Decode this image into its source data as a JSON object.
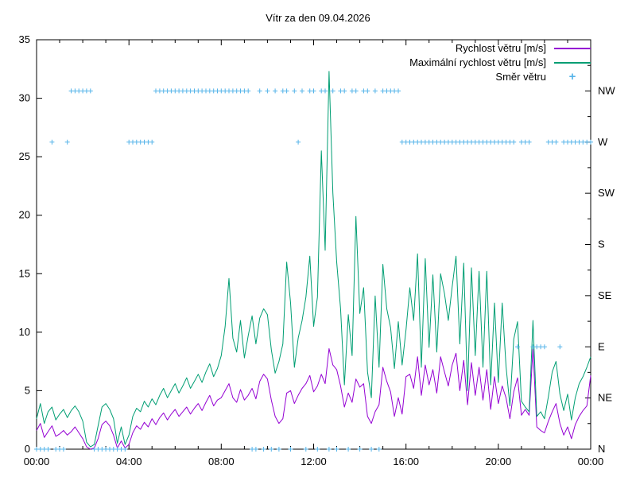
{
  "title": "Vítr za den 09.04.2026",
  "colors": {
    "avg": "#9400d3",
    "max": "#009e73",
    "dir": "#56b4e9",
    "axis": "#000000"
  },
  "legend": [
    {
      "label": "Rychlost větru [m/s]",
      "color": "#9400d3",
      "sample": "line"
    },
    {
      "label": "Maximální rychlost větru [m/s]",
      "color": "#009e73",
      "sample": "line"
    },
    {
      "label": "Směr větru",
      "color": "#56b4e9",
      "sample": "plus"
    }
  ],
  "chart_data": {
    "type": "line",
    "title": "Vítr za den 09.04.2026",
    "xlabel": "",
    "ylabel": "",
    "ylim": [
      0,
      35
    ],
    "y_ticks_left": [
      0,
      5,
      10,
      15,
      20,
      25,
      30,
      35
    ],
    "right_axis_labels": [
      "N",
      "NE",
      "E",
      "SE",
      "S",
      "SW",
      "W",
      "NW"
    ],
    "right_axis_unit_per_label": 4.375,
    "x_range_minutes": [
      0,
      1440
    ],
    "x_major_tick_hours": [
      0,
      4,
      8,
      12,
      16,
      20,
      24
    ],
    "x_major_tick_labels": [
      "00:00",
      "04:00",
      "08:00",
      "12:00",
      "16:00",
      "20:00",
      "00:00"
    ],
    "x_minor_tick_every_hours": 1,
    "grid": false,
    "legend_position": "top-right-inside",
    "time_step_minutes": 10,
    "series": [
      {
        "name": "Rychlost větru [m/s]",
        "color": "#9400d3",
        "values": [
          1.6,
          2.2,
          1.0,
          1.5,
          2.0,
          1.1,
          1.3,
          1.6,
          1.2,
          1.5,
          1.9,
          1.4,
          0.9,
          0.2,
          0.0,
          0.1,
          0.9,
          2.1,
          2.4,
          2.0,
          1.2,
          0.1,
          0.7,
          0.1,
          0.4,
          1.4,
          2.0,
          1.7,
          2.3,
          1.9,
          2.6,
          2.1,
          2.7,
          3.1,
          2.5,
          3.0,
          3.4,
          2.8,
          3.2,
          3.6,
          3.0,
          3.5,
          3.9,
          3.3,
          4.0,
          4.6,
          3.7,
          4.2,
          4.4,
          5.0,
          5.6,
          4.4,
          4.0,
          5.1,
          4.2,
          4.6,
          5.2,
          4.3,
          5.8,
          6.4,
          6.0,
          4.2,
          2.8,
          2.2,
          2.6,
          4.8,
          5.0,
          3.9,
          4.6,
          5.2,
          5.6,
          6.3,
          4.9,
          5.4,
          6.4,
          5.6,
          8.6,
          7.2,
          6.8,
          5.4,
          3.6,
          4.8,
          4.0,
          6.0,
          5.3,
          5.6,
          2.8,
          2.2,
          3.2,
          3.8,
          7.0,
          5.8,
          4.9,
          2.8,
          4.4,
          3.0,
          6.2,
          6.4,
          5.2,
          7.9,
          4.6,
          7.2,
          5.5,
          6.8,
          4.8,
          7.9,
          6.6,
          5.4,
          7.2,
          8.2,
          5.0,
          7.6,
          3.8,
          7.4,
          4.6,
          7.0,
          4.2,
          6.8,
          3.4,
          6.2,
          3.9,
          5.4,
          4.4,
          2.6,
          4.9,
          6.1,
          2.9,
          3.4,
          2.9,
          8.6,
          1.9,
          1.6,
          1.4,
          2.4,
          3.2,
          3.9,
          2.2,
          1.2,
          1.9,
          0.9,
          2.1,
          2.8,
          3.3,
          3.7,
          6.3
        ]
      },
      {
        "name": "Maximální rychlost větru [m/s]",
        "color": "#009e73",
        "values": [
          2.6,
          3.9,
          2.2,
          3.2,
          3.6,
          2.5,
          3.0,
          3.4,
          2.7,
          3.3,
          3.7,
          3.2,
          2.4,
          0.6,
          0.2,
          0.4,
          2.0,
          3.6,
          3.9,
          3.4,
          2.6,
          0.5,
          1.9,
          0.4,
          1.2,
          2.8,
          3.5,
          3.2,
          4.1,
          3.6,
          4.3,
          3.8,
          4.6,
          5.2,
          4.4,
          5.0,
          5.6,
          4.8,
          5.4,
          6.1,
          5.2,
          5.8,
          6.4,
          5.7,
          6.6,
          7.3,
          6.2,
          6.9,
          8.0,
          10.5,
          14.6,
          9.5,
          8.3,
          11.0,
          7.8,
          9.7,
          11.4,
          9.0,
          11.2,
          12.0,
          11.5,
          8.5,
          6.5,
          7.5,
          9.0,
          16.0,
          12.5,
          7.0,
          9.5,
          11.0,
          13.0,
          16.5,
          10.5,
          13.0,
          25.5,
          17.0,
          32.3,
          21.9,
          16.0,
          12.0,
          5.5,
          11.5,
          8.0,
          19.9,
          11.6,
          13.8,
          6.6,
          4.4,
          13.1,
          7.0,
          15.8,
          12.0,
          10.4,
          6.9,
          10.9,
          7.2,
          10.2,
          13.8,
          11.0,
          16.7,
          7.0,
          16.3,
          8.7,
          14.9,
          8.3,
          15.0,
          13.3,
          11.0,
          13.9,
          16.5,
          9.0,
          15.9,
          5.0,
          15.5,
          8.0,
          15.2,
          7.0,
          15.2,
          5.5,
          12.5,
          5.7,
          12.5,
          7.1,
          3.7,
          9.4,
          10.9,
          4.1,
          3.6,
          3.2,
          11.0,
          2.8,
          3.2,
          2.6,
          4.5,
          6.6,
          7.5,
          4.7,
          3.3,
          4.7,
          2.5,
          4.4,
          5.6,
          6.2,
          7.0,
          7.9
        ]
      }
    ],
    "direction_series": {
      "name": "Směr větru",
      "color": "#56b4e9",
      "marker": "plus",
      "values": [
        "N",
        "N",
        "N",
        "N",
        "W",
        "N",
        "N",
        "N",
        "W",
        "NW",
        "NW",
        "NW",
        "NW",
        "NW",
        "NW",
        "N",
        "N",
        "N",
        "N",
        "N",
        "N",
        "N",
        "N",
        "N",
        "W",
        "W",
        "W",
        "W",
        "W",
        "W",
        "W",
        "NW",
        "NW",
        "NW",
        "NW",
        "NW",
        "NW",
        "NW",
        "NW",
        "NW",
        "NW",
        "NW",
        "NW",
        "NW",
        "NW",
        "NW",
        "NW",
        "NW",
        "NW",
        "NW",
        "NW",
        "NW",
        "NW",
        "NW",
        "NW",
        "NW",
        "N",
        "N",
        "NW",
        "N",
        "NW",
        "N",
        "NW",
        "N",
        "NW",
        "NW",
        "N",
        "NW",
        "W",
        "NW",
        "N",
        "NW",
        "NW",
        "N",
        "NW",
        "NW",
        "N",
        "NW",
        "N",
        "NW",
        "NW",
        "N",
        "NW",
        "NW",
        "N",
        "NW",
        "NW",
        "N",
        "NW",
        "N",
        "NW",
        "NW",
        "NW",
        "NW",
        "NW",
        "W",
        "W",
        "W",
        "W",
        "W",
        "W",
        "W",
        "W",
        "W",
        "W",
        "W",
        "W",
        "W",
        "W",
        "W",
        "W",
        "W",
        "W",
        "W",
        "W",
        "W",
        "W",
        "W",
        "W",
        "W",
        "W",
        "W",
        "W",
        "W",
        "W",
        "E",
        "W",
        "W",
        "W",
        "E",
        "E",
        "E",
        "E",
        "W",
        "W",
        "W",
        "E",
        "W",
        "W",
        "W",
        "W",
        "W",
        "W",
        "W",
        "W"
      ]
    }
  }
}
